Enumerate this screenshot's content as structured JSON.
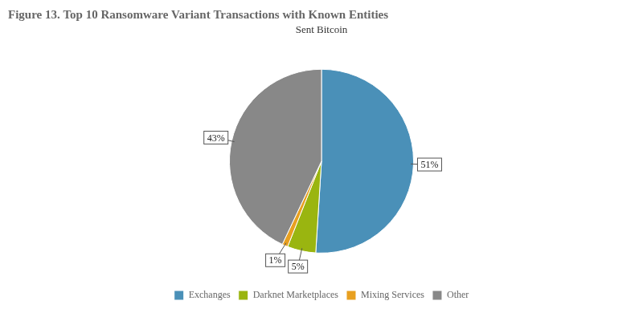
{
  "chart_data": {
    "type": "pie",
    "title": "Figure 13. Top 10 Ransomware Variant Transactions with Known Entities",
    "subtitle": "Sent Bitcoin",
    "categories": [
      "Exchanges",
      "Darknet Marketplaces",
      "Mixing Services",
      "Other"
    ],
    "values": [
      51,
      5,
      1,
      43
    ],
    "value_labels": [
      "51%",
      "5%",
      "1%",
      "43%"
    ],
    "colors": [
      "#4a90b8",
      "#9ab510",
      "#e8a020",
      "#888888"
    ],
    "data_labels": true,
    "legend": "bottom"
  }
}
